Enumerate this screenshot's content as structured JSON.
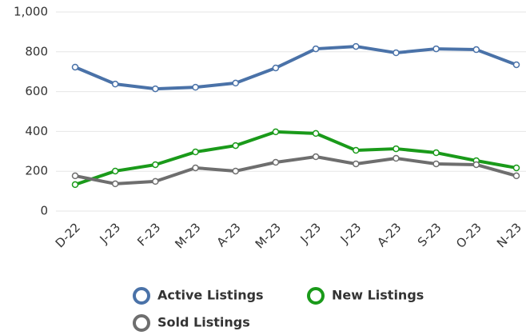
{
  "chart_data": {
    "type": "line",
    "categories": [
      "D-22",
      "J-23",
      "F-23",
      "M-23",
      "A-23",
      "M-23",
      "J-23",
      "J-23",
      "A-23",
      "S-23",
      "O-23",
      "N-23"
    ],
    "series": [
      {
        "name": "Active Listings",
        "color": "#4a72a8",
        "values": [
          723,
          638,
          614,
          622,
          643,
          719,
          815,
          827,
          795,
          815,
          811,
          735
        ]
      },
      {
        "name": "New Listings",
        "color": "#1a9a1a",
        "values": [
          133,
          201,
          233,
          297,
          329,
          398,
          390,
          305,
          313,
          293,
          253,
          217
        ]
      },
      {
        "name": "Sold Listings",
        "color": "#6e6e6e",
        "values": [
          177,
          137,
          149,
          217,
          201,
          245,
          273,
          237,
          265,
          237,
          233,
          177
        ]
      }
    ],
    "ylim": [
      0,
      1000
    ],
    "yticks": [
      0,
      200,
      400,
      600,
      800,
      {
        "value": 1000,
        "label": "1,000"
      }
    ],
    "grid": true
  }
}
